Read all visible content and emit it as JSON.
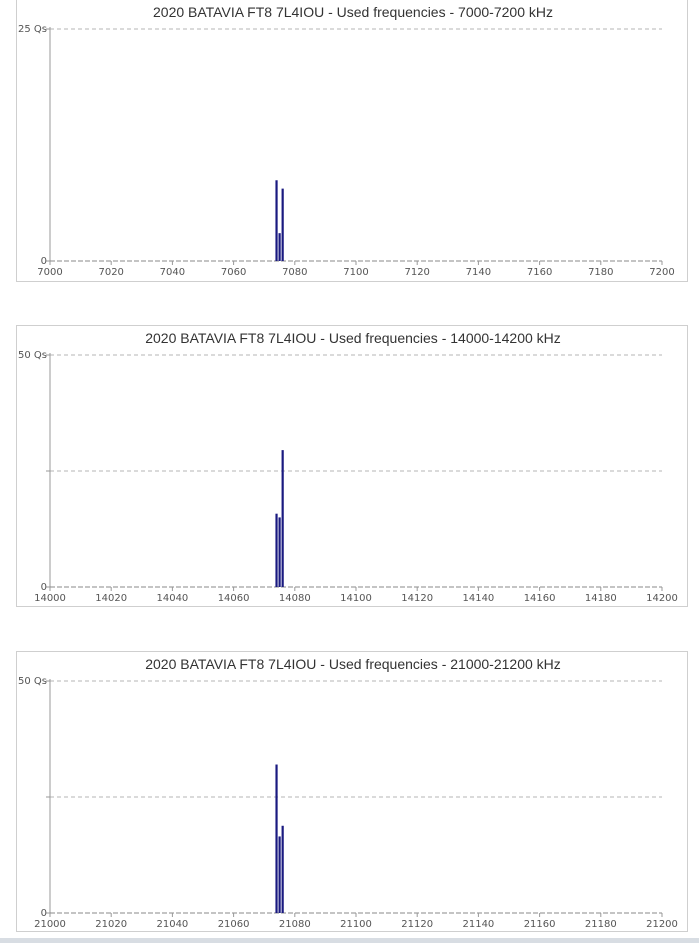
{
  "chart_data": [
    {
      "type": "bar",
      "title": "2020 BATAVIA FT8 7L4IOU - Used frequencies - 7000-7200 kHz",
      "xlim": [
        7000,
        7200
      ],
      "x_ticks": [
        7000,
        7020,
        7040,
        7060,
        7080,
        7100,
        7120,
        7140,
        7160,
        7180,
        7200
      ],
      "ylim": [
        0,
        25
      ],
      "y_ticks": [
        {
          "value": 0,
          "label": "0"
        },
        {
          "value": 25,
          "label": "25 Qs"
        }
      ],
      "x": [
        7074,
        7075,
        7076
      ],
      "values": [
        8.7,
        3.0,
        7.8
      ],
      "grid": "horizontal dashed",
      "bar_color": "#1a1a80"
    },
    {
      "type": "bar",
      "title": "2020 BATAVIA FT8 7L4IOU - Used frequencies - 14000-14200 kHz",
      "xlim": [
        14000,
        14200
      ],
      "x_ticks": [
        14000,
        14020,
        14040,
        14060,
        14080,
        14100,
        14120,
        14140,
        14160,
        14180,
        14200
      ],
      "ylim": [
        0,
        50
      ],
      "y_ticks": [
        {
          "value": 0,
          "label": "0"
        },
        {
          "value": 25,
          "label": ""
        },
        {
          "value": 50,
          "label": "50 Qs"
        }
      ],
      "x": [
        14074,
        14075,
        14076
      ],
      "values": [
        15.8,
        15.0,
        29.5
      ],
      "grid": "horizontal dashed",
      "bar_color": "#1a1a80"
    },
    {
      "type": "bar",
      "title": "2020 BATAVIA FT8 7L4IOU - Used frequencies - 21000-21200 kHz",
      "xlim": [
        21000,
        21200
      ],
      "x_ticks": [
        21000,
        21020,
        21040,
        21060,
        21080,
        21100,
        21120,
        21140,
        21160,
        21180,
        21200
      ],
      "ylim": [
        0,
        50
      ],
      "y_ticks": [
        {
          "value": 0,
          "label": "0"
        },
        {
          "value": 25,
          "label": ""
        },
        {
          "value": 50,
          "label": "50 Qs"
        }
      ],
      "x": [
        21074,
        21075,
        21076
      ],
      "values": [
        32.0,
        16.5,
        18.8
      ],
      "grid": "horizontal dashed",
      "bar_color": "#1a1a80"
    }
  ]
}
